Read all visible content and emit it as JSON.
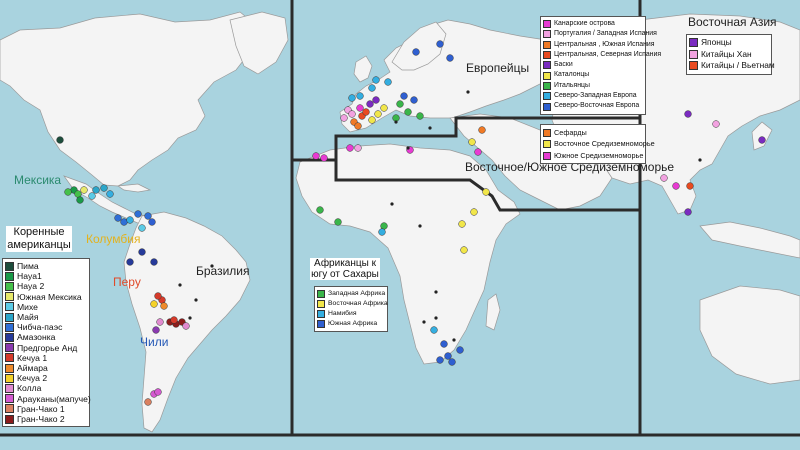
{
  "panels": {
    "europe": {
      "title": "Европейцы"
    },
    "mideast": {
      "title": "Восточное/Южное Средиземноморье"
    },
    "eastasia": {
      "title": "Восточная Азия"
    },
    "africa": {
      "title": "Африканцы к югу от Сахары"
    },
    "america": {
      "title": "Коренные американцы"
    }
  },
  "country_labels": {
    "mexico": {
      "text": "Мексика",
      "color": "#2a8a6e"
    },
    "colombia": {
      "text": "Колумбия",
      "color": "#e3b21d"
    },
    "peru": {
      "text": "Перу",
      "color": "#e04a2a"
    },
    "brazil": {
      "text": "Бразилия",
      "color": "#222222"
    },
    "chile": {
      "text": "Чили",
      "color": "#2257b5"
    }
  },
  "legends": {
    "america": [
      {
        "label": "Пима",
        "color": "#1d4d3c"
      },
      {
        "label": "Наyа1",
        "color": "#1a9a48"
      },
      {
        "label": "Наyа 2",
        "color": "#45c04a"
      },
      {
        "label": "Южная Мексика",
        "color": "#e7e86a"
      },
      {
        "label": "Михе",
        "color": "#5ccbe6"
      },
      {
        "label": "Майя",
        "color": "#2ca6c9"
      },
      {
        "label": "Чибча-паэс",
        "color": "#2f6fd6"
      },
      {
        "label": "Амазонка",
        "color": "#263a9a"
      },
      {
        "label": "Предгорье Анд",
        "color": "#8a3ab0"
      },
      {
        "label": "Кечуа 1",
        "color": "#d53a2a"
      },
      {
        "label": "Аймара",
        "color": "#ee8a2c"
      },
      {
        "label": "Кечуа 2",
        "color": "#f4d22a"
      },
      {
        "label": "Колла",
        "color": "#e18bd0"
      },
      {
        "label": "Арауканы(мапуче)",
        "color": "#d45ad0"
      },
      {
        "label": "Гран-Чако 1",
        "color": "#d98060"
      },
      {
        "label": "Гран-Чако 2",
        "color": "#8b1c1c"
      }
    ],
    "europe": [
      {
        "label": "Канарские острова",
        "color": "#e73bd2"
      },
      {
        "label": "Португалия / Западная Испания",
        "color": "#f2a2e0"
      },
      {
        "label": "Центральная , Южная Испания",
        "color": "#f07a26"
      },
      {
        "label": "Центральная, Северная Испания",
        "color": "#e84a20"
      },
      {
        "label": "Баски",
        "color": "#7a2bc0"
      },
      {
        "label": "Каталонцы",
        "color": "#f1e64a"
      },
      {
        "label": "Итальянцы",
        "color": "#3ab54a"
      },
      {
        "label": "Северо-Западная Европа",
        "color": "#34aee0"
      },
      {
        "label": "Северо-Восточная Европа",
        "color": "#2f5fd0"
      }
    ],
    "mideast": [
      {
        "label": "Сефарды",
        "color": "#f07a26"
      },
      {
        "label": "Восточное Средиземноморье",
        "color": "#f1e64a"
      },
      {
        "label": "Южное Средиземноморье",
        "color": "#e73bd2"
      }
    ],
    "eastasia": [
      {
        "label": "Японцы",
        "color": "#7a2bc0"
      },
      {
        "label": "Китайцы Хан",
        "color": "#f2a2e0"
      },
      {
        "label": "Китайцы / Вьетнам",
        "color": "#e84a20"
      }
    ],
    "africa": [
      {
        "label": "Западная Африка",
        "color": "#3ab54a"
      },
      {
        "label": "Восточная Африка",
        "color": "#f1e64a"
      },
      {
        "label": "Намибия",
        "color": "#34aee0"
      },
      {
        "label": "Южная Африка",
        "color": "#2f5fd0"
      }
    ]
  }
}
